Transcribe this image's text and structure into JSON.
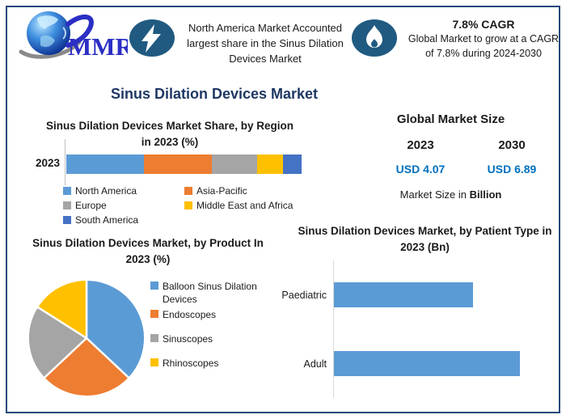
{
  "colors": {
    "frame_border": "#28497C",
    "title_navy": "#1F3864",
    "usd_blue": "#0070C0",
    "icon_bg": "#205A80",
    "logo_blue": "#2B2FC4"
  },
  "header": {
    "logo_text": "MMR",
    "highlight1": {
      "text": "North America Market Accounted largest share in the Sinus Dilation Devices Market"
    },
    "highlight2": {
      "title": "7.8% CAGR",
      "text": "Global Market to grow at a CAGR of 7.8% during 2024-2030"
    }
  },
  "page_title": "Sinus Dilation Devices Market",
  "market_size": {
    "title": "Global Market Size",
    "year_start": "2023",
    "year_end": "2030",
    "value_start": "USD 4.07",
    "value_end": "USD 6.89",
    "footnote_prefix": "Market Size in ",
    "footnote_bold": "Billion"
  },
  "chart_data": [
    {
      "type": "bar",
      "variant": "stacked-horizontal",
      "title": "Sinus Dilation Devices Market Share, by Region in 2023 (%)",
      "categories": [
        "2023"
      ],
      "legend_position": "bottom",
      "series": [
        {
          "name": "North America",
          "color": "#5B9BD5",
          "values": [
            33
          ]
        },
        {
          "name": "Asia-Pacific",
          "color": "#ED7D31",
          "values": [
            29
          ]
        },
        {
          "name": "Europe",
          "color": "#A5A5A5",
          "values": [
            19
          ]
        },
        {
          "name": "Middle East and Africa",
          "color": "#FFC000",
          "values": [
            11
          ]
        },
        {
          "name": "South America",
          "color": "#4472C4",
          "values": [
            8
          ]
        }
      ]
    },
    {
      "type": "pie",
      "title": "Sinus Dilation Devices Market, by Product In 2023 (%)",
      "labels": [
        "Balloon Sinus Dilation Devices",
        "Endoscopes",
        "Sinuscopes",
        "Rhinoscopes"
      ],
      "values": [
        37,
        26,
        21,
        16
      ],
      "colors": [
        "#5B9BD5",
        "#ED7D31",
        "#A5A5A5",
        "#FFC000"
      ],
      "start_angle": "top",
      "direction": "clockwise",
      "legend_position": "right"
    },
    {
      "type": "bar",
      "variant": "horizontal",
      "title": "Sinus Dilation Devices Market, by Patient Type in 2023 (Bn)",
      "categories": [
        "Paediatric",
        "Adult"
      ],
      "values": [
        1.74,
        2.33
      ],
      "xlim": [
        0,
        2.7
      ],
      "color": "#5B9BD5",
      "grid": false
    }
  ]
}
